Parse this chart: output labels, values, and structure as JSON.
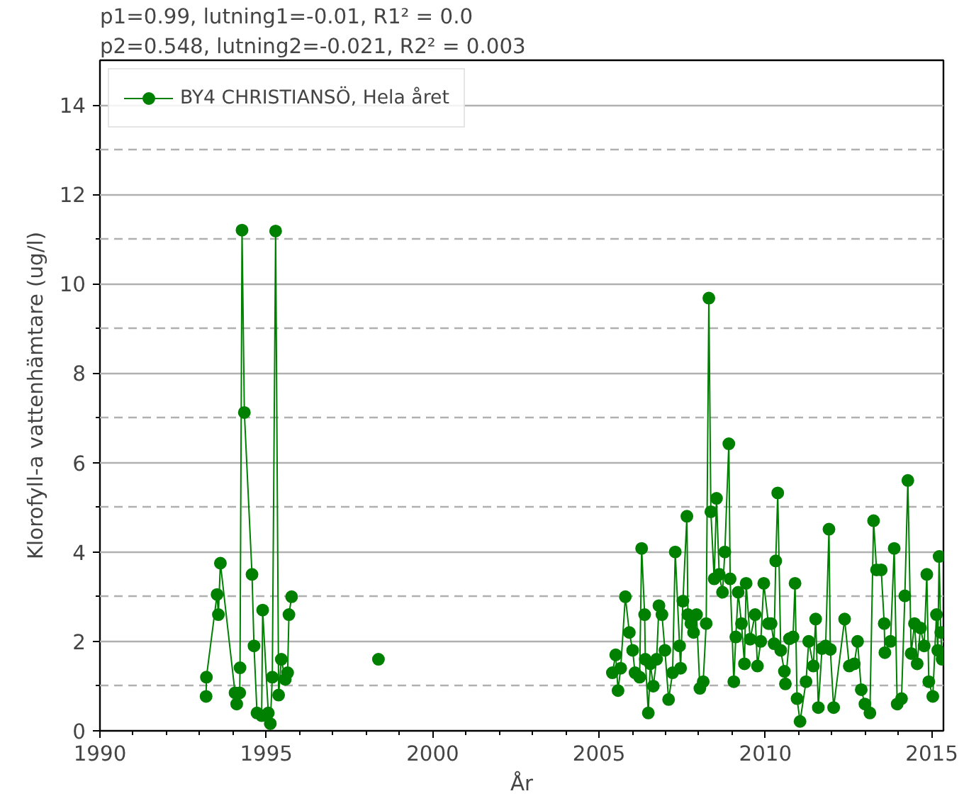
{
  "chart_data": {
    "type": "line",
    "title": "p1=0.99, lutning1=-0.01, R1² = 0.0",
    "subtitle": "p2=0.548, lutning2=-0.021, R2² = 0.003",
    "xlabel": "År",
    "ylabel": "Klorofyll-a vattenhämtare (ug/l)",
    "xlim": [
      1990,
      2015.35
    ],
    "ylim": [
      0,
      15
    ],
    "xticks": [
      1990,
      {
        "value": 1991,
        "label": null
      },
      {
        "value": 1992,
        "label": null
      },
      {
        "value": 1993,
        "label": null
      },
      {
        "value": 1994,
        "label": null
      },
      1995,
      {
        "value": 1996,
        "label": null
      },
      {
        "value": 1997,
        "label": null
      },
      {
        "value": 1998,
        "label": null
      },
      {
        "value": 1999,
        "label": null
      },
      2000,
      {
        "value": 2001,
        "label": null
      },
      {
        "value": 2002,
        "label": null
      },
      {
        "value": 2003,
        "label": null
      },
      {
        "value": 2004,
        "label": null
      },
      2005,
      {
        "value": 2006,
        "label": null
      },
      {
        "value": 2007,
        "label": null
      },
      {
        "value": 2008,
        "label": null
      },
      {
        "value": 2009,
        "label": null
      },
      2010,
      {
        "value": 2011,
        "label": null
      },
      {
        "value": 2012,
        "label": null
      },
      {
        "value": 2013,
        "label": null
      },
      {
        "value": 2014,
        "label": null
      },
      2015
    ],
    "yticks": [
      0,
      {
        "value": 1,
        "label": null
      },
      2,
      {
        "value": 3,
        "label": null
      },
      4,
      {
        "value": 5,
        "label": null
      },
      6,
      {
        "value": 7,
        "label": null
      },
      8,
      {
        "value": 9,
        "label": null
      },
      10,
      {
        "value": 11,
        "label": null
      },
      12,
      {
        "value": 13,
        "label": null
      },
      14
    ],
    "grid": true,
    "legend": "top left",
    "marker": "circle",
    "line_style": "solid",
    "series": [
      {
        "name": "BY4 CHRISTIANSÖ, Hela året",
        "color": "#008000",
        "x": [
          1993.19,
          1993.2,
          1993.52,
          1993.56,
          1993.62,
          1994.06,
          1994.11,
          1994.2,
          1994.21,
          1994.27,
          1994.34,
          1994.57,
          1994.63,
          1994.72,
          1994.86,
          1994.89,
          1995.06,
          1995.12,
          1995.18,
          1995.28,
          1995.37,
          1995.45,
          1995.57,
          1995.64,
          1995.68,
          1995.76,
          1997.0,
          1998.37,
          2000.0,
          2005.4,
          2005.5,
          2005.57,
          2005.65,
          2005.79,
          2005.91,
          2006.01,
          2006.08,
          2006.22,
          2006.28,
          2006.37,
          2006.39,
          2006.48,
          2006.54,
          2006.63,
          2006.73,
          2006.8,
          2006.89,
          2006.98,
          2007.09,
          2007.21,
          2007.29,
          2007.42,
          2007.45,
          2007.52,
          2007.64,
          2007.67,
          2007.76,
          2007.84,
          2007.93,
          2008.03,
          2008.13,
          2008.22,
          2008.3,
          2008.36,
          2008.46,
          2008.53,
          2008.61,
          2008.71,
          2008.78,
          2008.9,
          2008.94,
          2009.05,
          2009.11,
          2009.18,
          2009.28,
          2009.37,
          2009.42,
          2009.54,
          2009.69,
          2009.76,
          2009.86,
          2009.95,
          2010.09,
          2010.17,
          2010.26,
          2010.31,
          2010.37,
          2010.46,
          2010.57,
          2010.6,
          2010.72,
          2010.83,
          2010.89,
          2010.95,
          2011.04,
          2011.22,
          2011.3,
          2011.44,
          2011.51,
          2011.59,
          2011.7,
          2011.81,
          2011.91,
          2011.95,
          2012.05,
          2012.38,
          2012.52,
          2012.67,
          2012.77,
          2012.88,
          2012.99,
          2013.14,
          2013.25,
          2013.34,
          2013.48,
          2013.57,
          2013.59,
          2013.76,
          2013.87,
          2013.96,
          2014.09,
          2014.19,
          2014.28,
          2014.38,
          2014.48,
          2014.56,
          2014.66,
          2014.77,
          2014.85,
          2014.91,
          2015.03,
          2015.14,
          2015.18,
          2015.22,
          2015.27,
          2015.31
        ],
        "values": [
          0.77,
          1.2,
          3.05,
          2.6,
          3.75,
          0.85,
          0.6,
          0.85,
          1.41,
          11.2,
          7.12,
          3.5,
          1.9,
          0.4,
          0.34,
          2.7,
          0.4,
          0.16,
          1.2,
          11.18,
          0.8,
          1.6,
          1.15,
          1.3,
          2.6,
          3.0,
          null,
          1.6,
          null,
          1.3,
          1.7,
          0.9,
          1.4,
          3.0,
          2.2,
          1.8,
          1.3,
          1.2,
          4.08,
          2.6,
          1.6,
          0.4,
          1.5,
          1.0,
          1.6,
          2.8,
          2.6,
          1.8,
          0.7,
          1.3,
          4.0,
          1.9,
          1.4,
          2.9,
          4.8,
          2.6,
          2.4,
          2.2,
          2.6,
          0.95,
          1.1,
          2.4,
          9.68,
          4.9,
          3.4,
          5.2,
          3.5,
          3.1,
          4.0,
          6.42,
          3.4,
          1.1,
          2.1,
          3.1,
          2.4,
          1.5,
          3.3,
          2.05,
          2.6,
          1.45,
          2.0,
          3.3,
          2.4,
          2.4,
          1.95,
          3.8,
          5.32,
          1.8,
          1.33,
          1.05,
          2.06,
          2.1,
          3.3,
          0.72,
          0.21,
          1.1,
          2.0,
          1.45,
          2.5,
          0.52,
          1.84,
          1.9,
          4.51,
          1.82,
          0.52,
          2.5,
          1.45,
          1.5,
          2.0,
          0.92,
          0.6,
          0.4,
          4.7,
          3.6,
          3.6,
          2.4,
          1.75,
          2.0,
          4.08,
          0.6,
          0.72,
          3.02,
          5.6,
          1.73,
          2.4,
          1.5,
          2.3,
          1.9,
          3.5,
          1.1,
          0.77,
          2.6,
          1.8,
          3.9,
          2.2,
          1.6
        ]
      }
    ]
  }
}
